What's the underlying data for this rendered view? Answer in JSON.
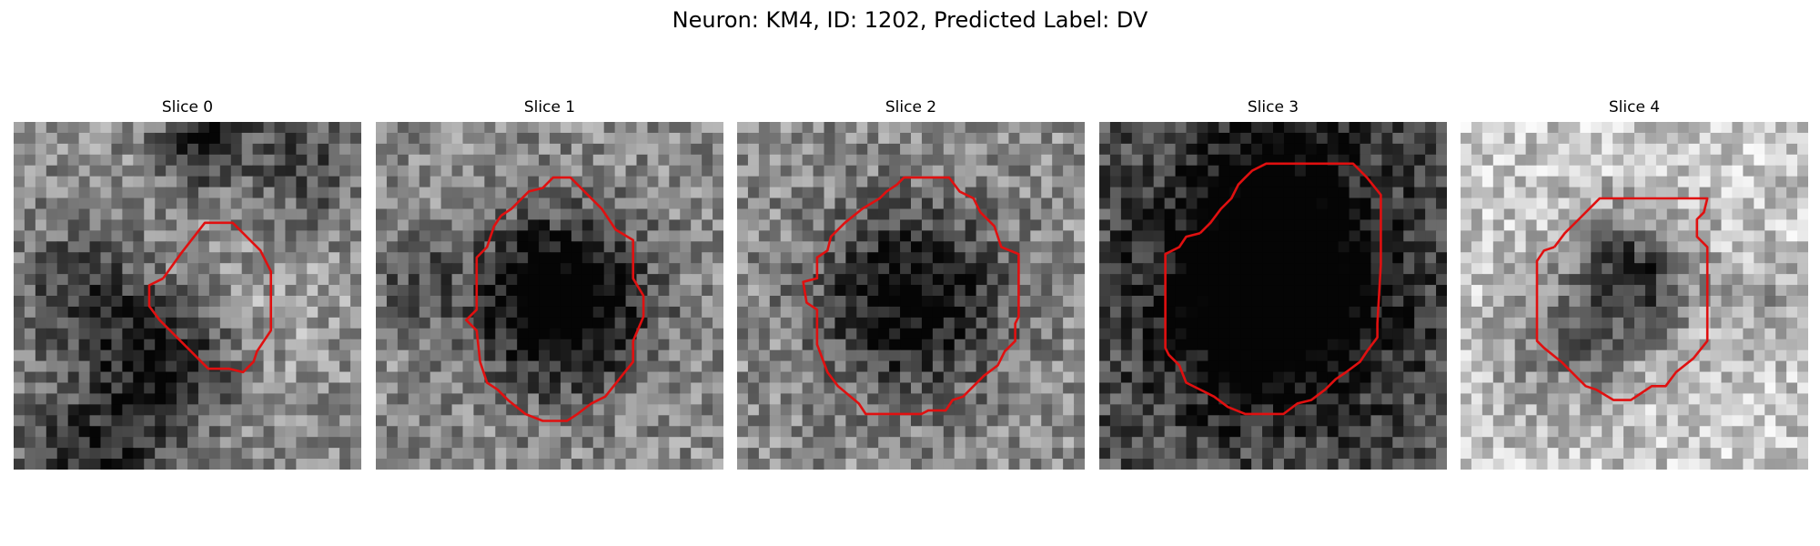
{
  "figure": {
    "title": "Neuron: KM4, ID: 1202, Predicted Label: DV"
  },
  "contour_color": "#e01010",
  "panels": [
    {
      "title": "Slice 0",
      "brightness": "mixed",
      "center": [
        0.57,
        0.5
      ],
      "dark_spots": [
        [
          0.55,
          0.05,
          0.12,
          -0.5
        ],
        [
          0.85,
          0.12,
          0.16,
          -0.3
        ],
        [
          0.2,
          0.5,
          0.18,
          -0.35
        ],
        [
          0.45,
          0.7,
          0.18,
          -0.45
        ],
        [
          0.25,
          0.97,
          0.22,
          -0.4
        ],
        [
          0.75,
          0.55,
          0.2,
          0.1
        ]
      ],
      "contour": [
        [
          0.43,
          0.45
        ],
        [
          0.48,
          0.38
        ],
        [
          0.55,
          0.29
        ],
        [
          0.63,
          0.29
        ],
        [
          0.71,
          0.37
        ],
        [
          0.74,
          0.43
        ],
        [
          0.74,
          0.57
        ],
        [
          0.74,
          0.6
        ],
        [
          0.72,
          0.63
        ],
        [
          0.7,
          0.66
        ],
        [
          0.69,
          0.69
        ],
        [
          0.66,
          0.72
        ],
        [
          0.62,
          0.71
        ],
        [
          0.56,
          0.71
        ],
        [
          0.51,
          0.66
        ],
        [
          0.46,
          0.61
        ],
        [
          0.42,
          0.57
        ],
        [
          0.39,
          0.53
        ],
        [
          0.39,
          0.47
        ]
      ]
    },
    {
      "title": "Slice 1",
      "brightness": "dark-center",
      "center": [
        0.53,
        0.52
      ],
      "dark_spots": [
        [
          0.53,
          0.52,
          0.24,
          -0.75
        ],
        [
          0.1,
          0.45,
          0.14,
          -0.2
        ]
      ],
      "contour": [
        [
          0.36,
          0.27
        ],
        [
          0.39,
          0.25
        ],
        [
          0.44,
          0.2
        ],
        [
          0.48,
          0.19
        ],
        [
          0.51,
          0.16
        ],
        [
          0.56,
          0.16
        ],
        [
          0.6,
          0.2
        ],
        [
          0.65,
          0.25
        ],
        [
          0.69,
          0.31
        ],
        [
          0.74,
          0.34
        ],
        [
          0.74,
          0.45
        ],
        [
          0.77,
          0.5
        ],
        [
          0.77,
          0.56
        ],
        [
          0.74,
          0.63
        ],
        [
          0.74,
          0.69
        ],
        [
          0.7,
          0.74
        ],
        [
          0.66,
          0.79
        ],
        [
          0.62,
          0.81
        ],
        [
          0.58,
          0.84
        ],
        [
          0.55,
          0.86
        ],
        [
          0.48,
          0.86
        ],
        [
          0.43,
          0.84
        ],
        [
          0.38,
          0.8
        ],
        [
          0.35,
          0.77
        ],
        [
          0.32,
          0.75
        ],
        [
          0.3,
          0.69
        ],
        [
          0.29,
          0.6
        ],
        [
          0.26,
          0.57
        ],
        [
          0.29,
          0.54
        ],
        [
          0.29,
          0.39
        ],
        [
          0.32,
          0.36
        ],
        [
          0.34,
          0.3
        ]
      ]
    },
    {
      "title": "Slice 2",
      "brightness": "dark-center",
      "center": [
        0.5,
        0.51
      ],
      "dark_spots": [
        [
          0.5,
          0.51,
          0.25,
          -0.6
        ]
      ],
      "contour": [
        [
          0.31,
          0.29
        ],
        [
          0.36,
          0.25
        ],
        [
          0.41,
          0.22
        ],
        [
          0.43,
          0.2
        ],
        [
          0.46,
          0.18
        ],
        [
          0.48,
          0.16
        ],
        [
          0.61,
          0.16
        ],
        [
          0.64,
          0.2
        ],
        [
          0.68,
          0.22
        ],
        [
          0.7,
          0.26
        ],
        [
          0.74,
          0.3
        ],
        [
          0.76,
          0.36
        ],
        [
          0.81,
          0.38
        ],
        [
          0.81,
          0.56
        ],
        [
          0.8,
          0.58
        ],
        [
          0.8,
          0.63
        ],
        [
          0.77,
          0.66
        ],
        [
          0.75,
          0.7
        ],
        [
          0.71,
          0.73
        ],
        [
          0.68,
          0.76
        ],
        [
          0.65,
          0.79
        ],
        [
          0.62,
          0.8
        ],
        [
          0.6,
          0.83
        ],
        [
          0.55,
          0.83
        ],
        [
          0.53,
          0.84
        ],
        [
          0.37,
          0.84
        ],
        [
          0.35,
          0.81
        ],
        [
          0.29,
          0.76
        ],
        [
          0.26,
          0.72
        ],
        [
          0.23,
          0.64
        ],
        [
          0.23,
          0.54
        ],
        [
          0.2,
          0.52
        ],
        [
          0.19,
          0.46
        ],
        [
          0.23,
          0.45
        ],
        [
          0.23,
          0.39
        ],
        [
          0.26,
          0.37
        ],
        [
          0.27,
          0.33
        ]
      ]
    },
    {
      "title": "Slice 3",
      "brightness": "dark",
      "center": [
        0.5,
        0.48
      ],
      "dark_spots": [
        [
          0.5,
          0.48,
          0.3,
          -0.8
        ],
        [
          0.5,
          0.08,
          0.2,
          -0.25
        ]
      ],
      "contour": [
        [
          0.29,
          0.32
        ],
        [
          0.32,
          0.29
        ],
        [
          0.35,
          0.25
        ],
        [
          0.38,
          0.22
        ],
        [
          0.4,
          0.18
        ],
        [
          0.42,
          0.16
        ],
        [
          0.44,
          0.14
        ],
        [
          0.48,
          0.12
        ],
        [
          0.58,
          0.12
        ],
        [
          0.65,
          0.12
        ],
        [
          0.73,
          0.12
        ],
        [
          0.77,
          0.16
        ],
        [
          0.81,
          0.21
        ],
        [
          0.81,
          0.41
        ],
        [
          0.8,
          0.58
        ],
        [
          0.8,
          0.62
        ],
        [
          0.77,
          0.66
        ],
        [
          0.75,
          0.69
        ],
        [
          0.71,
          0.72
        ],
        [
          0.68,
          0.74
        ],
        [
          0.65,
          0.77
        ],
        [
          0.61,
          0.8
        ],
        [
          0.57,
          0.81
        ],
        [
          0.53,
          0.84
        ],
        [
          0.42,
          0.84
        ],
        [
          0.37,
          0.82
        ],
        [
          0.33,
          0.79
        ],
        [
          0.29,
          0.77
        ],
        [
          0.25,
          0.75
        ],
        [
          0.23,
          0.7
        ],
        [
          0.2,
          0.67
        ],
        [
          0.19,
          0.65
        ],
        [
          0.19,
          0.38
        ],
        [
          0.23,
          0.36
        ],
        [
          0.25,
          0.33
        ]
      ]
    },
    {
      "title": "Slice 4",
      "brightness": "bright",
      "center": [
        0.5,
        0.48
      ],
      "dark_spots": [
        [
          0.5,
          0.45,
          0.18,
          -0.6
        ],
        [
          0.3,
          0.65,
          0.2,
          -0.3
        ],
        [
          0.9,
          0.55,
          0.12,
          -0.2
        ]
      ],
      "contour": [
        [
          0.27,
          0.36
        ],
        [
          0.3,
          0.32
        ],
        [
          0.34,
          0.28
        ],
        [
          0.38,
          0.24
        ],
        [
          0.4,
          0.22
        ],
        [
          0.45,
          0.22
        ],
        [
          0.67,
          0.22
        ],
        [
          0.71,
          0.22
        ],
        [
          0.7,
          0.26
        ],
        [
          0.68,
          0.28
        ],
        [
          0.68,
          0.33
        ],
        [
          0.71,
          0.36
        ],
        [
          0.71,
          0.63
        ],
        [
          0.67,
          0.68
        ],
        [
          0.62,
          0.72
        ],
        [
          0.59,
          0.76
        ],
        [
          0.55,
          0.76
        ],
        [
          0.52,
          0.78
        ],
        [
          0.49,
          0.8
        ],
        [
          0.44,
          0.8
        ],
        [
          0.39,
          0.77
        ],
        [
          0.36,
          0.76
        ],
        [
          0.33,
          0.73
        ],
        [
          0.29,
          0.69
        ],
        [
          0.24,
          0.65
        ],
        [
          0.22,
          0.63
        ],
        [
          0.22,
          0.4
        ],
        [
          0.24,
          0.37
        ]
      ]
    }
  ]
}
